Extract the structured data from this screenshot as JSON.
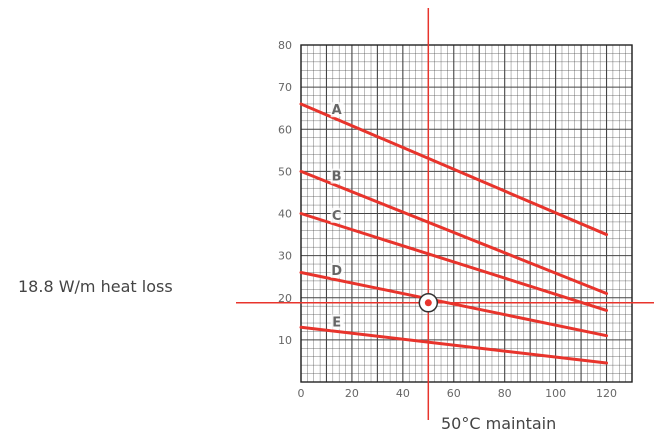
{
  "chart_data": {
    "type": "line",
    "x": [
      0,
      120
    ],
    "series": [
      {
        "name": "A",
        "values": [
          66,
          35
        ],
        "color": "#e8342c"
      },
      {
        "name": "B",
        "values": [
          50,
          21
        ],
        "color": "#e8342c"
      },
      {
        "name": "C",
        "values": [
          40,
          17
        ],
        "color": "#e8342c"
      },
      {
        "name": "D",
        "values": [
          26,
          11
        ],
        "color": "#e8342c"
      },
      {
        "name": "E",
        "values": [
          13,
          4.5
        ],
        "color": "#e8342c"
      }
    ],
    "xlim": [
      0,
      130
    ],
    "ylim": [
      0,
      80
    ],
    "xticks": [
      0,
      20,
      40,
      60,
      80,
      100,
      120
    ],
    "yticks": [
      10,
      20,
      30,
      40,
      50,
      60,
      70,
      80
    ],
    "grid": true,
    "xlabel": "",
    "ylabel": "",
    "marker": {
      "x": 50,
      "y": 18.8
    },
    "annotations": {
      "heat_loss": "18.8 W/m heat loss",
      "maintain": "50°C maintain"
    },
    "guide_color": "#e8342c",
    "line_color": "#e8342c",
    "grid_color": "#444444"
  }
}
